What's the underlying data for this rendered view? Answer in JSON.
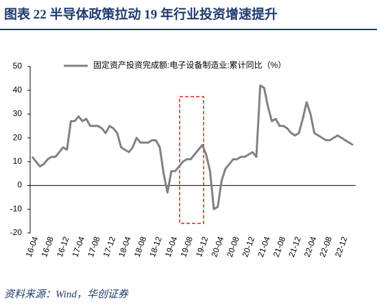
{
  "header": {
    "title": "图表 22  半导体政策拉动 19 年行业投资增速提升"
  },
  "source": "资料来源：Wind，华创证券",
  "chart_data": {
    "type": "line",
    "categories": [
      null,
      "16-04",
      null,
      null,
      null,
      "16-08",
      null,
      null,
      null,
      "16-12",
      null,
      null,
      null,
      "17-04",
      null,
      null,
      null,
      "17-08",
      null,
      null,
      null,
      "17-12",
      null,
      null,
      null,
      "18-04",
      null,
      null,
      null,
      "18-08",
      null,
      null,
      null,
      "18-12",
      null,
      null,
      null,
      "19-04",
      null,
      null,
      null,
      "19-08",
      null,
      null,
      null,
      "19-12",
      null,
      null,
      null,
      "20-04",
      null,
      null,
      null,
      "20-08",
      null,
      null,
      null,
      "20-12",
      null,
      null,
      null,
      "21-04",
      null,
      null,
      null,
      "21-08",
      null,
      null,
      null,
      "21-12",
      null,
      null,
      null,
      "22-04",
      null,
      null,
      null,
      "22-08",
      null,
      null,
      null,
      "22-12",
      null,
      null
    ],
    "series": [
      {
        "name": "固定资产投资完成额:电子设备制造业:累计同比（%）",
        "color": "#808080",
        "values": [
          12,
          10,
          8,
          9,
          11,
          12,
          12,
          14,
          16,
          15,
          27,
          27,
          29,
          27,
          28,
          25,
          25,
          25,
          24,
          22,
          25,
          24,
          22,
          16,
          15,
          14,
          16,
          20,
          18,
          18,
          18,
          19,
          19,
          16,
          5,
          -3,
          6,
          6,
          8,
          10,
          11,
          11,
          13,
          15,
          17,
          13,
          6,
          -10,
          -9,
          2,
          7,
          9,
          11,
          11,
          12,
          12,
          13,
          14,
          12,
          42,
          41,
          33,
          27,
          28,
          25,
          25,
          24,
          22,
          21,
          22,
          28,
          35,
          30,
          22,
          21,
          20,
          19,
          19,
          20,
          21,
          20,
          19,
          18,
          17
        ]
      }
    ],
    "ylim": [
      -20,
      50
    ],
    "yticks": [
      -20,
      -10,
      0,
      10,
      20,
      30,
      40,
      50
    ],
    "legend": "top"
  }
}
